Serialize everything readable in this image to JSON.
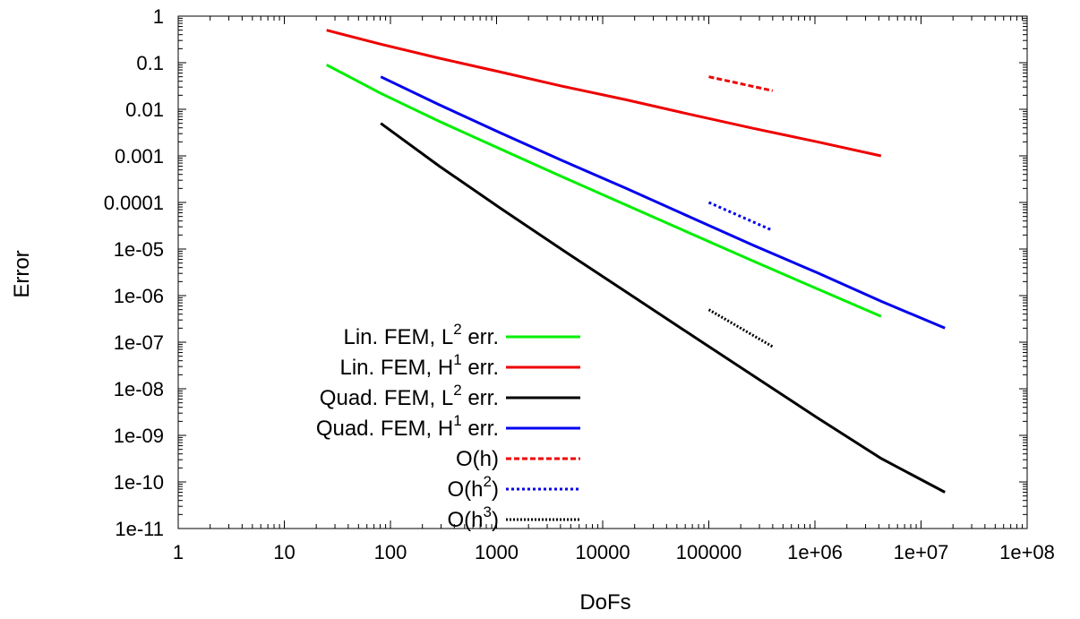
{
  "chart_data": {
    "type": "line",
    "xlabel": "DoFs",
    "ylabel": "Error",
    "x_scale": "log",
    "y_scale": "log",
    "xlim": [
      1,
      100000000
    ],
    "ylim": [
      1e-11,
      1
    ],
    "x_tick_labels": [
      "1",
      "10",
      "100",
      "1000",
      "10000",
      "100000",
      "1e+06",
      "1e+07",
      "1e+08"
    ],
    "x_tick_values": [
      1,
      10,
      100,
      1000,
      10000,
      100000,
      1000000,
      10000000,
      100000000
    ],
    "y_tick_labels": [
      "1",
      "0.1",
      "0.01",
      "0.001",
      "0.0001",
      "1e-05",
      "1e-06",
      "1e-07",
      "1e-08",
      "1e-09",
      "1e-10",
      "1e-11"
    ],
    "y_tick_values": [
      1,
      0.1,
      0.01,
      0.001,
      0.0001,
      1e-05,
      1e-06,
      1e-07,
      1e-08,
      1e-09,
      1e-10,
      1e-11
    ],
    "grid": false,
    "legend_position": "bottom-left",
    "series": [
      {
        "name": "Lin. FEM, L2 err.",
        "legend_base": "Lin. FEM, L",
        "legend_sup": "2",
        "legend_tail": " err.",
        "color": "#00ee00",
        "dash": "solid",
        "x": [
          25,
          81,
          289,
          1089,
          4225,
          16641,
          66049,
          263169,
          1050625,
          4198401
        ],
        "y": [
          0.09,
          0.022,
          0.0055,
          0.0014,
          0.00035,
          8.8e-05,
          2.2e-05,
          5.5e-06,
          1.4e-06,
          3.6e-07
        ]
      },
      {
        "name": "Lin. FEM, H1 err.",
        "legend_base": "Lin. FEM, H",
        "legend_sup": "1",
        "legend_tail": " err.",
        "color": "#ee0000",
        "dash": "solid",
        "x": [
          25,
          81,
          289,
          1089,
          4225,
          16641,
          66049,
          263169,
          1050625,
          4198401
        ],
        "y": [
          0.5,
          0.25,
          0.125,
          0.063,
          0.031,
          0.016,
          0.0078,
          0.0039,
          0.002,
          0.001
        ]
      },
      {
        "name": "Quad. FEM, L2 err.",
        "legend_base": "Quad. FEM, L",
        "legend_sup": "2",
        "legend_tail": " err.",
        "color": "#000000",
        "dash": "solid",
        "x": [
          81,
          289,
          1089,
          4225,
          16641,
          66049,
          263169,
          1050625,
          4198401,
          16785409
        ],
        "y": [
          0.005,
          0.0006,
          7.5e-05,
          9.4e-06,
          1.2e-06,
          1.5e-07,
          1.9e-08,
          2.4e-09,
          3.2e-10,
          6e-11
        ]
      },
      {
        "name": "Quad. FEM, H1 err.",
        "legend_base": "Quad. FEM, H",
        "legend_sup": "1",
        "legend_tail": " err.",
        "color": "#0000ee",
        "dash": "solid",
        "x": [
          81,
          289,
          1089,
          4225,
          16641,
          66049,
          263169,
          1050625,
          4198401,
          16785409
        ],
        "y": [
          0.05,
          0.0125,
          0.0031,
          0.00078,
          0.0002,
          4.9e-05,
          1.2e-05,
          3.1e-06,
          7.6e-07,
          2e-07
        ]
      },
      {
        "name": "O(h)",
        "legend_base": "O(h)",
        "legend_sup": "",
        "legend_tail": "",
        "color": "#ee0000",
        "dash": "dashed",
        "x": [
          100000,
          400000
        ],
        "y": [
          0.05,
          0.025
        ]
      },
      {
        "name": "O(h2)",
        "legend_base": "O(h",
        "legend_sup": "2",
        "legend_tail": ")",
        "color": "#0000ee",
        "dash": "dotted",
        "x": [
          100000,
          400000
        ],
        "y": [
          0.0001,
          2.5e-05
        ]
      },
      {
        "name": "O(h3)",
        "legend_base": "O(h",
        "legend_sup": "3",
        "legend_tail": ")",
        "color": "#000000",
        "dash": "dense-dotted",
        "x": [
          100000,
          400000
        ],
        "y": [
          5e-07,
          8e-08
        ]
      }
    ]
  }
}
